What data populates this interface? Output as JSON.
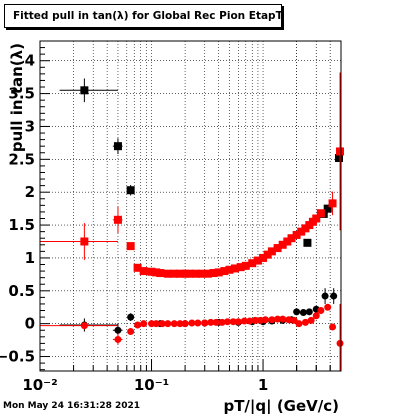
{
  "title": "Fitted pull in tan(λ) for Global Rec Pion EtapT",
  "footer_timestamp": "Mon May 24 16:31:28 2021",
  "chart_data": {
    "type": "scatter",
    "xlabel": "pT/|q| (GeV/c)",
    "ylabel": "pull in tan(λ)",
    "xscale": "log",
    "xlim": [
      0.01,
      5.0
    ],
    "ylim": [
      -0.72,
      4.3
    ],
    "grid": true,
    "x_ticks": [
      {
        "value": 0.01,
        "label": "10⁻²"
      },
      {
        "value": 0.1,
        "label": "10⁻¹"
      },
      {
        "value": 1,
        "label": "1"
      }
    ],
    "y_ticks": [
      -0.5,
      0,
      0.5,
      1,
      1.5,
      2,
      2.5,
      3,
      3.5,
      4
    ],
    "y_tick_labels": [
      "−0.5",
      "0",
      "0.5",
      "1",
      "1.5",
      "2",
      "2.5",
      "3",
      "3.5",
      "4"
    ],
    "colors": {
      "black": "#000000",
      "red": "#ff0000"
    },
    "series": [
      {
        "color": "#000000",
        "marker": "square",
        "points": [
          {
            "x": 0.025,
            "y": 3.55,
            "xerr": [
              0.015,
              0.05
            ],
            "yerr": 0.18
          },
          {
            "x": 0.05,
            "y": 2.7,
            "xerr": [
              0.045,
              0.055
            ],
            "yerr": 0.12
          },
          {
            "x": 0.065,
            "y": 2.03,
            "yerr": 0.08
          },
          {
            "x": 2.5,
            "y": 1.23
          },
          {
            "x": 3.5,
            "y": 1.67
          },
          {
            "x": 3.8,
            "y": 1.75
          },
          {
            "x": 4.8,
            "y": 2.52
          }
        ]
      },
      {
        "color": "#ff0000",
        "marker": "square",
        "points": [
          {
            "x": 0.025,
            "y": 1.25,
            "xerr": [
              0.01,
              0.05
            ],
            "yerr": 0.28
          },
          {
            "x": 0.05,
            "y": 1.58,
            "xerr": [
              0.045,
              0.055
            ],
            "yerr": 0.2
          },
          {
            "x": 0.065,
            "y": 1.18
          },
          {
            "x": 0.075,
            "y": 0.85
          },
          {
            "x": 0.085,
            "y": 0.8
          },
          {
            "x": 0.1,
            "y": 0.79
          },
          {
            "x": 0.11,
            "y": 0.78
          },
          {
            "x": 0.12,
            "y": 0.77
          },
          {
            "x": 0.14,
            "y": 0.76
          },
          {
            "x": 0.16,
            "y": 0.76
          },
          {
            "x": 0.18,
            "y": 0.76
          },
          {
            "x": 0.2,
            "y": 0.76
          },
          {
            "x": 0.22,
            "y": 0.76
          },
          {
            "x": 0.25,
            "y": 0.76
          },
          {
            "x": 0.28,
            "y": 0.76
          },
          {
            "x": 0.32,
            "y": 0.76
          },
          {
            "x": 0.36,
            "y": 0.77
          },
          {
            "x": 0.4,
            "y": 0.78
          },
          {
            "x": 0.45,
            "y": 0.8
          },
          {
            "x": 0.5,
            "y": 0.82
          },
          {
            "x": 0.56,
            "y": 0.84
          },
          {
            "x": 0.63,
            "y": 0.86
          },
          {
            "x": 0.7,
            "y": 0.88
          },
          {
            "x": 0.8,
            "y": 0.92
          },
          {
            "x": 0.9,
            "y": 0.96
          },
          {
            "x": 1.0,
            "y": 1.0
          },
          {
            "x": 1.1,
            "y": 1.05
          },
          {
            "x": 1.2,
            "y": 1.1
          },
          {
            "x": 1.35,
            "y": 1.15
          },
          {
            "x": 1.5,
            "y": 1.2
          },
          {
            "x": 1.65,
            "y": 1.25
          },
          {
            "x": 1.8,
            "y": 1.3
          },
          {
            "x": 2.0,
            "y": 1.35
          },
          {
            "x": 2.2,
            "y": 1.4
          },
          {
            "x": 2.4,
            "y": 1.45
          },
          {
            "x": 2.6,
            "y": 1.5
          },
          {
            "x": 2.8,
            "y": 1.55
          },
          {
            "x": 3.0,
            "y": 1.6
          },
          {
            "x": 3.3,
            "y": 1.68
          },
          {
            "x": 4.2,
            "y": 1.83,
            "yerr": 0.18
          },
          {
            "x": 4.9,
            "y": 2.62,
            "yerr": 1.2
          }
        ]
      },
      {
        "color": "#000000",
        "marker": "circle",
        "points": [
          {
            "x": 0.025,
            "y": -0.02,
            "xerr": [
              0.015,
              0.05
            ],
            "yerr": 0.1
          },
          {
            "x": 0.05,
            "y": -0.1,
            "xerr": [
              0.045,
              0.055
            ],
            "yerr": 0.1
          },
          {
            "x": 0.065,
            "y": 0.1,
            "yerr": 0.06
          },
          {
            "x": 0.12,
            "y": 0.0
          },
          {
            "x": 0.2,
            "y": 0.0
          },
          {
            "x": 0.3,
            "y": 0.01
          },
          {
            "x": 0.4,
            "y": 0.02
          },
          {
            "x": 0.6,
            "y": 0.02
          },
          {
            "x": 0.8,
            "y": 0.03
          },
          {
            "x": 1.0,
            "y": 0.03
          },
          {
            "x": 1.2,
            "y": 0.04
          },
          {
            "x": 1.5,
            "y": 0.05
          },
          {
            "x": 1.8,
            "y": 0.06
          },
          {
            "x": 2.0,
            "y": 0.18
          },
          {
            "x": 2.3,
            "y": 0.17
          },
          {
            "x": 2.6,
            "y": 0.18
          },
          {
            "x": 3.0,
            "y": 0.22
          },
          {
            "x": 3.6,
            "y": 0.42,
            "yerr": 0.12
          },
          {
            "x": 4.3,
            "y": 0.42,
            "yerr": 0.12
          }
        ]
      },
      {
        "color": "#ff0000",
        "marker": "circle",
        "points": [
          {
            "x": 0.025,
            "y": -0.03,
            "xerr": [
              0.01,
              0.05
            ],
            "yerr": 0.05
          },
          {
            "x": 0.05,
            "y": -0.24,
            "xerr": [
              0.045,
              0.055
            ],
            "yerr": 0.08
          },
          {
            "x": 0.065,
            "y": -0.12
          },
          {
            "x": 0.075,
            "y": -0.02
          },
          {
            "x": 0.085,
            "y": 0.0
          },
          {
            "x": 0.1,
            "y": 0.0
          },
          {
            "x": 0.11,
            "y": 0.0
          },
          {
            "x": 0.125,
            "y": 0.0
          },
          {
            "x": 0.14,
            "y": 0.0
          },
          {
            "x": 0.16,
            "y": 0.0
          },
          {
            "x": 0.18,
            "y": 0.0
          },
          {
            "x": 0.2,
            "y": 0.0
          },
          {
            "x": 0.23,
            "y": 0.01
          },
          {
            "x": 0.26,
            "y": 0.01
          },
          {
            "x": 0.3,
            "y": 0.01
          },
          {
            "x": 0.34,
            "y": 0.02
          },
          {
            "x": 0.38,
            "y": 0.02
          },
          {
            "x": 0.43,
            "y": 0.02
          },
          {
            "x": 0.48,
            "y": 0.03
          },
          {
            "x": 0.54,
            "y": 0.03
          },
          {
            "x": 0.6,
            "y": 0.03
          },
          {
            "x": 0.68,
            "y": 0.04
          },
          {
            "x": 0.76,
            "y": 0.04
          },
          {
            "x": 0.85,
            "y": 0.05
          },
          {
            "x": 0.95,
            "y": 0.05
          },
          {
            "x": 1.05,
            "y": 0.06
          },
          {
            "x": 1.2,
            "y": 0.06
          },
          {
            "x": 1.35,
            "y": 0.07
          },
          {
            "x": 1.5,
            "y": 0.07
          },
          {
            "x": 1.7,
            "y": 0.06
          },
          {
            "x": 1.9,
            "y": 0.05
          },
          {
            "x": 2.1,
            "y": 0.0
          },
          {
            "x": 2.4,
            "y": 0.02
          },
          {
            "x": 2.7,
            "y": 0.05
          },
          {
            "x": 3.0,
            "y": 0.12
          },
          {
            "x": 3.3,
            "y": 0.2
          },
          {
            "x": 3.8,
            "y": 0.25
          },
          {
            "x": 4.2,
            "y": -0.05
          },
          {
            "x": 4.9,
            "y": -0.3,
            "yerr": 0.6
          }
        ]
      }
    ]
  }
}
